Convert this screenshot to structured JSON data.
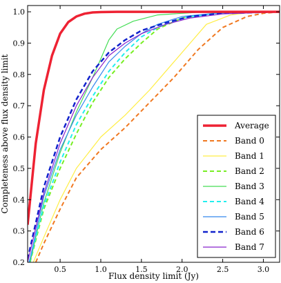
{
  "chart_data": {
    "type": "line",
    "xlabel": "Flux density limit (Jy)",
    "ylabel": "Completeness above flux density limit",
    "xlim": [
      0.1,
      3.2
    ],
    "ylim": [
      0.2,
      1.02
    ],
    "xticks": [
      0.5,
      1.0,
      1.5,
      2.0,
      2.5,
      3.0
    ],
    "xtick_labels": [
      "0.5",
      "1.0",
      "1.5",
      "2.0",
      "2.5",
      "3.0"
    ],
    "yticks": [
      0.2,
      0.3,
      0.4,
      0.5,
      0.6,
      0.7,
      0.8,
      0.9,
      1.0
    ],
    "ytick_labels": [
      "0.2",
      "0.3",
      "0.4",
      "0.5",
      "0.6",
      "0.7",
      "0.8",
      "0.9",
      "1.0"
    ],
    "grid": false,
    "legend_position": "lower-right",
    "series": [
      {
        "name": "Average",
        "color": "#ee2233",
        "dash": "solid",
        "width": 3.5,
        "x": [
          0.1,
          0.2,
          0.3,
          0.4,
          0.5,
          0.6,
          0.7,
          0.8,
          0.9,
          1.0,
          1.2,
          1.5,
          2.0,
          3.2
        ],
        "y": [
          0.32,
          0.58,
          0.75,
          0.86,
          0.93,
          0.967,
          0.985,
          0.994,
          0.998,
          0.999,
          1.0,
          1.0,
          1.0,
          1.0
        ]
      },
      {
        "name": "Band 0",
        "color": "#f07820",
        "dash": "dashed",
        "width": 2,
        "x": [
          0.2,
          0.3,
          0.5,
          0.7,
          1.0,
          1.3,
          1.6,
          1.9,
          2.2,
          2.5,
          2.8,
          3.0,
          3.2
        ],
        "y": [
          0.2,
          0.26,
          0.37,
          0.47,
          0.56,
          0.63,
          0.71,
          0.79,
          0.88,
          0.95,
          0.985,
          0.995,
          1.0
        ]
      },
      {
        "name": "Band 1",
        "color": "#ffee44",
        "dash": "solid",
        "width": 1.2,
        "x": [
          0.17,
          0.3,
          0.5,
          0.7,
          1.0,
          1.3,
          1.6,
          1.9,
          2.1,
          2.3,
          2.6,
          2.9,
          3.2
        ],
        "y": [
          0.2,
          0.28,
          0.4,
          0.5,
          0.6,
          0.67,
          0.75,
          0.84,
          0.9,
          0.96,
          0.99,
          1.0,
          1.0
        ]
      },
      {
        "name": "Band 2",
        "color": "#77ee22",
        "dash": "dashed",
        "width": 2,
        "x": [
          0.13,
          0.3,
          0.5,
          0.7,
          0.9,
          1.1,
          1.3,
          1.5,
          1.7,
          2.0,
          2.4,
          3.2
        ],
        "y": [
          0.2,
          0.37,
          0.5,
          0.61,
          0.71,
          0.79,
          0.85,
          0.9,
          0.945,
          0.98,
          0.995,
          1.0
        ]
      },
      {
        "name": "Band 3",
        "color": "#44dd55",
        "dash": "solid",
        "width": 1.2,
        "x": [
          0.13,
          0.3,
          0.5,
          0.7,
          0.9,
          1.0,
          1.1,
          1.2,
          1.4,
          1.7,
          2.0,
          2.3,
          2.6,
          3.2
        ],
        "y": [
          0.2,
          0.39,
          0.55,
          0.68,
          0.79,
          0.85,
          0.91,
          0.945,
          0.97,
          0.99,
          0.995,
          1.0,
          1.0,
          1.0
        ]
      },
      {
        "name": "Band 4",
        "color": "#22eeee",
        "dash": "dashed",
        "width": 2,
        "x": [
          0.12,
          0.3,
          0.5,
          0.7,
          0.9,
          1.1,
          1.3,
          1.5,
          1.7,
          2.0,
          2.4,
          3.2
        ],
        "y": [
          0.2,
          0.38,
          0.52,
          0.64,
          0.73,
          0.81,
          0.87,
          0.92,
          0.95,
          0.98,
          0.995,
          1.0
        ]
      },
      {
        "name": "Band 5",
        "color": "#3388ee",
        "dash": "solid",
        "width": 1.2,
        "x": [
          0.12,
          0.3,
          0.5,
          0.7,
          0.9,
          1.1,
          1.3,
          1.5,
          1.7,
          2.0,
          2.4,
          3.2
        ],
        "y": [
          0.2,
          0.41,
          0.56,
          0.67,
          0.76,
          0.84,
          0.89,
          0.93,
          0.96,
          0.985,
          0.995,
          1.0
        ]
      },
      {
        "name": "Band 6",
        "color": "#1122cc",
        "dash": "dashed",
        "width": 2.5,
        "x": [
          0.1,
          0.3,
          0.5,
          0.7,
          0.9,
          1.1,
          1.3,
          1.5,
          1.8,
          2.1,
          2.5,
          3.2
        ],
        "y": [
          0.21,
          0.44,
          0.6,
          0.72,
          0.81,
          0.87,
          0.91,
          0.94,
          0.965,
          0.985,
          0.995,
          1.0
        ]
      },
      {
        "name": "Band 7",
        "color": "#8822cc",
        "dash": "solid",
        "width": 1.2,
        "x": [
          0.1,
          0.3,
          0.5,
          0.7,
          0.9,
          1.1,
          1.3,
          1.5,
          1.8,
          2.1,
          2.5,
          3.2
        ],
        "y": [
          0.2,
          0.42,
          0.58,
          0.7,
          0.79,
          0.86,
          0.9,
          0.93,
          0.96,
          0.98,
          0.993,
          1.0
        ]
      }
    ]
  }
}
